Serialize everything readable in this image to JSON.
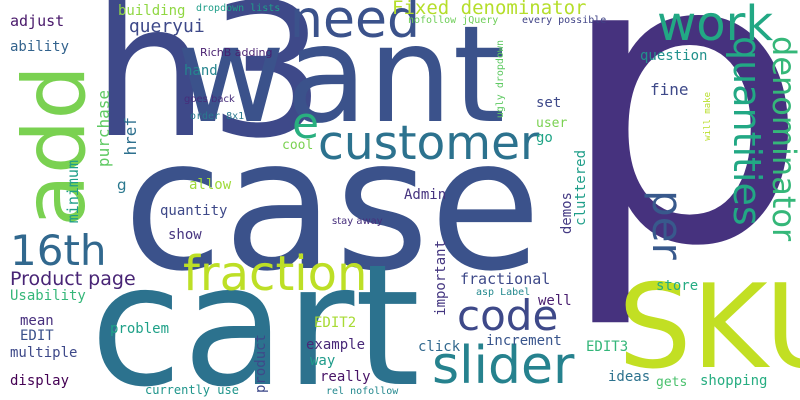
{
  "words": [
    {
      "id": "p",
      "text": "p",
      "color": "#46327e"
    },
    {
      "id": "case",
      "text": "case",
      "color": "#3b528b"
    },
    {
      "id": "h3",
      "text": "h3",
      "color": "#3e4989"
    },
    {
      "id": "want",
      "text": "want",
      "color": "#3b528b"
    },
    {
      "id": "cart",
      "text": "cart",
      "color": "#2c728e"
    },
    {
      "id": "sku",
      "text": "SKU",
      "color": "#c2df23"
    },
    {
      "id": "add",
      "text": "add",
      "color": "#7ad151"
    },
    {
      "id": "need",
      "text": "need",
      "color": "#3b528b"
    },
    {
      "id": "work",
      "text": "work",
      "color": "#22a884"
    },
    {
      "id": "customer",
      "text": "customer",
      "color": "#2c728e"
    },
    {
      "id": "fraction",
      "text": "fraction",
      "color": "#bddf26"
    },
    {
      "id": "16th",
      "text": "16th",
      "color": "#31688e"
    },
    {
      "id": "slider",
      "text": "slider",
      "color": "#26828e"
    },
    {
      "id": "code",
      "text": "code",
      "color": "#3e4989"
    },
    {
      "id": "quantities",
      "text": "quantities",
      "color": "#22a884"
    },
    {
      "id": "denominator",
      "text": "denominator",
      "color": "#35b779"
    },
    {
      "id": "per",
      "text": "per",
      "color": "#38598c"
    },
    {
      "id": "e",
      "text": "e",
      "color": "#29af7f"
    },
    {
      "id": "fixed_denominator",
      "text": "Fixed denominator",
      "color": "#b5de2b"
    },
    {
      "id": "product_page",
      "text": "Product page",
      "color": "#482475"
    },
    {
      "id": "jqueryui",
      "text": "jqueryui",
      "color": "#3e4989"
    },
    {
      "id": "building",
      "text": "building",
      "color": "#90d743"
    },
    {
      "id": "dropdown_lists",
      "text": "dropdown lists",
      "color": "#1f9e89"
    },
    {
      "id": "adjust",
      "text": "adjust",
      "color": "#48186a"
    },
    {
      "id": "ability",
      "text": "ability",
      "color": "#33638d"
    },
    {
      "id": "question",
      "text": "question",
      "color": "#21918c"
    },
    {
      "id": "fine",
      "text": "fine",
      "color": "#3e4989"
    },
    {
      "id": "set",
      "text": "set",
      "color": "#3e4989"
    },
    {
      "id": "user",
      "text": "user",
      "color": "#7ad151"
    },
    {
      "id": "go",
      "text": "go",
      "color": "#20a486"
    },
    {
      "id": "hand",
      "text": "hand",
      "color": "#25858e"
    },
    {
      "id": "purchase",
      "text": "purchase",
      "color": "#5ec962"
    },
    {
      "id": "href",
      "text": "href",
      "color": "#2d708e"
    },
    {
      "id": "minimum",
      "text": "minimum",
      "color": "#1f9e89"
    },
    {
      "id": "richb_adding",
      "text": "RichB adding",
      "color": "#481f70"
    },
    {
      "id": "goes_back",
      "text": "goes back",
      "color": "#472d7b"
    },
    {
      "id": "order_8x1",
      "text": "order 8x1",
      "color": "#2a788e"
    },
    {
      "id": "cool",
      "text": "cool",
      "color": "#7ad151"
    },
    {
      "id": "g",
      "text": "g",
      "color": "#2a788e"
    },
    {
      "id": "allow",
      "text": "allow",
      "color": "#9fda3a"
    },
    {
      "id": "quantity",
      "text": "quantity",
      "color": "#3e4989"
    },
    {
      "id": "show",
      "text": "show",
      "color": "#46337f"
    },
    {
      "id": "admin",
      "text": "Admin",
      "color": "#46337f"
    },
    {
      "id": "stay_away",
      "text": "stay away",
      "color": "#472f7d"
    },
    {
      "id": "demos",
      "text": "demos",
      "color": "#443a83"
    },
    {
      "id": "cluttered",
      "text": "cluttered",
      "color": "#1f9e89"
    },
    {
      "id": "important",
      "text": "important",
      "color": "#453781"
    },
    {
      "id": "fractional",
      "text": "fractional",
      "color": "#3e4989"
    },
    {
      "id": "asp_label",
      "text": "asp Label",
      "color": "#23898e"
    },
    {
      "id": "store",
      "text": "store",
      "color": "#25ac82"
    },
    {
      "id": "usability",
      "text": "Usability",
      "color": "#35b779"
    },
    {
      "id": "well",
      "text": "well",
      "color": "#481d6f"
    },
    {
      "id": "mean",
      "text": "mean",
      "color": "#472f7d"
    },
    {
      "id": "problem",
      "text": "problem",
      "color": "#1fa188"
    },
    {
      "id": "edit2",
      "text": "EDIT2",
      "color": "#a8db34"
    },
    {
      "id": "edit",
      "text": "EDIT",
      "color": "#3b528b"
    },
    {
      "id": "multiple",
      "text": "multiple",
      "color": "#3e4989"
    },
    {
      "id": "example",
      "text": "example",
      "color": "#482878"
    },
    {
      "id": "increment",
      "text": "increment",
      "color": "#39558c"
    },
    {
      "id": "edit3",
      "text": "EDIT3",
      "color": "#34b679"
    },
    {
      "id": "click",
      "text": "click",
      "color": "#31688e"
    },
    {
      "id": "way",
      "text": "way",
      "color": "#1e9b8a"
    },
    {
      "id": "product",
      "text": "product",
      "color": "#3e4989"
    },
    {
      "id": "really",
      "text": "really",
      "color": "#481467"
    },
    {
      "id": "display",
      "text": "display",
      "color": "#440154"
    },
    {
      "id": "currently_use",
      "text": "currently use",
      "color": "#1f958b"
    },
    {
      "id": "rel_nofollow",
      "text": "rel nofollow",
      "color": "#23888e"
    },
    {
      "id": "ideas",
      "text": "ideas",
      "color": "#2c728e"
    },
    {
      "id": "gets",
      "text": "gets",
      "color": "#4ac16d"
    },
    {
      "id": "shopping",
      "text": "shopping",
      "color": "#26ad81"
    },
    {
      "id": "nofollow_jquery",
      "text": "nofollow jQuery",
      "color": "#6ece58"
    },
    {
      "id": "every_possible",
      "text": "every possible",
      "color": "#414487"
    },
    {
      "id": "ugly_dropdown",
      "text": "ugly dropdown",
      "color": "#5ec962"
    },
    {
      "id": "will_make",
      "text": "will make",
      "color": "#b8de29"
    }
  ]
}
